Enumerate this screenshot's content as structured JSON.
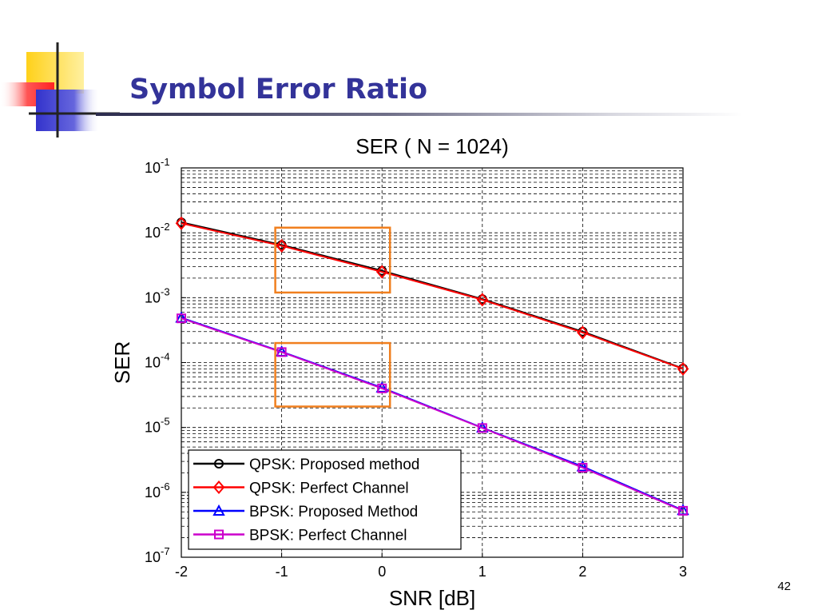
{
  "slide": {
    "title": "Symbol Error Ratio",
    "page_number": "42"
  },
  "colors": {
    "title": "#333399",
    "logo_yellow": "#ffd11a",
    "logo_red": "#ff3333",
    "logo_blue": "#3333cc",
    "highlight_box": "#f07f1e"
  },
  "chart_data": {
    "type": "line",
    "title": "SER ( N = 1024)",
    "xlabel": "SNR [dB]",
    "ylabel": "SER",
    "xlim": [
      -2,
      3
    ],
    "ylim": [
      1e-07,
      0.1
    ],
    "yscale": "log",
    "grid": true,
    "x": [
      -2,
      -1,
      0,
      1,
      2,
      3
    ],
    "x_tick_labels": [
      "-2",
      "-1",
      "0",
      "1",
      "2",
      "3"
    ],
    "y_tick_labels": [
      {
        "base": "10",
        "exp": "-1"
      },
      {
        "base": "10",
        "exp": "-2"
      },
      {
        "base": "10",
        "exp": "-3"
      },
      {
        "base": "10",
        "exp": "-4"
      },
      {
        "base": "10",
        "exp": "-5"
      },
      {
        "base": "10",
        "exp": "-6"
      },
      {
        "base": "10",
        "exp": "-7"
      }
    ],
    "y_tick_values": [
      0.1,
      0.01,
      0.001,
      0.0001,
      1e-05,
      1e-06,
      1e-07
    ],
    "legend_position": "bottom-left",
    "series": [
      {
        "name": "QPSK: Proposed method",
        "color": "#000000",
        "marker": "circle",
        "values": [
          0.0145,
          0.0065,
          0.0026,
          0.00095,
          0.0003,
          8.1e-05
        ]
      },
      {
        "name": "QPSK: Perfect Channel",
        "color": "#ff0000",
        "marker": "diamond",
        "values": [
          0.014,
          0.0063,
          0.0025,
          0.00093,
          0.00029,
          8e-05
        ]
      },
      {
        "name": "BPSK: Proposed Method",
        "color": "#0000ff",
        "marker": "triangle",
        "values": [
          0.00049,
          0.000147,
          4.1e-05,
          9.9e-06,
          2.5e-06,
          5.3e-07
        ]
      },
      {
        "name": "BPSK: Perfect Channel",
        "color": "#cc00cc",
        "marker": "square",
        "values": [
          0.00048,
          0.000145,
          4e-05,
          9.8e-06,
          2.4e-06,
          5.2e-07
        ]
      }
    ],
    "highlight_regions": [
      {
        "x": [
          -1,
          0
        ],
        "y": [
          0.0012,
          0.012
        ]
      },
      {
        "x": [
          -1,
          0
        ],
        "y": [
          2.1e-05,
          0.0002
        ]
      }
    ]
  }
}
